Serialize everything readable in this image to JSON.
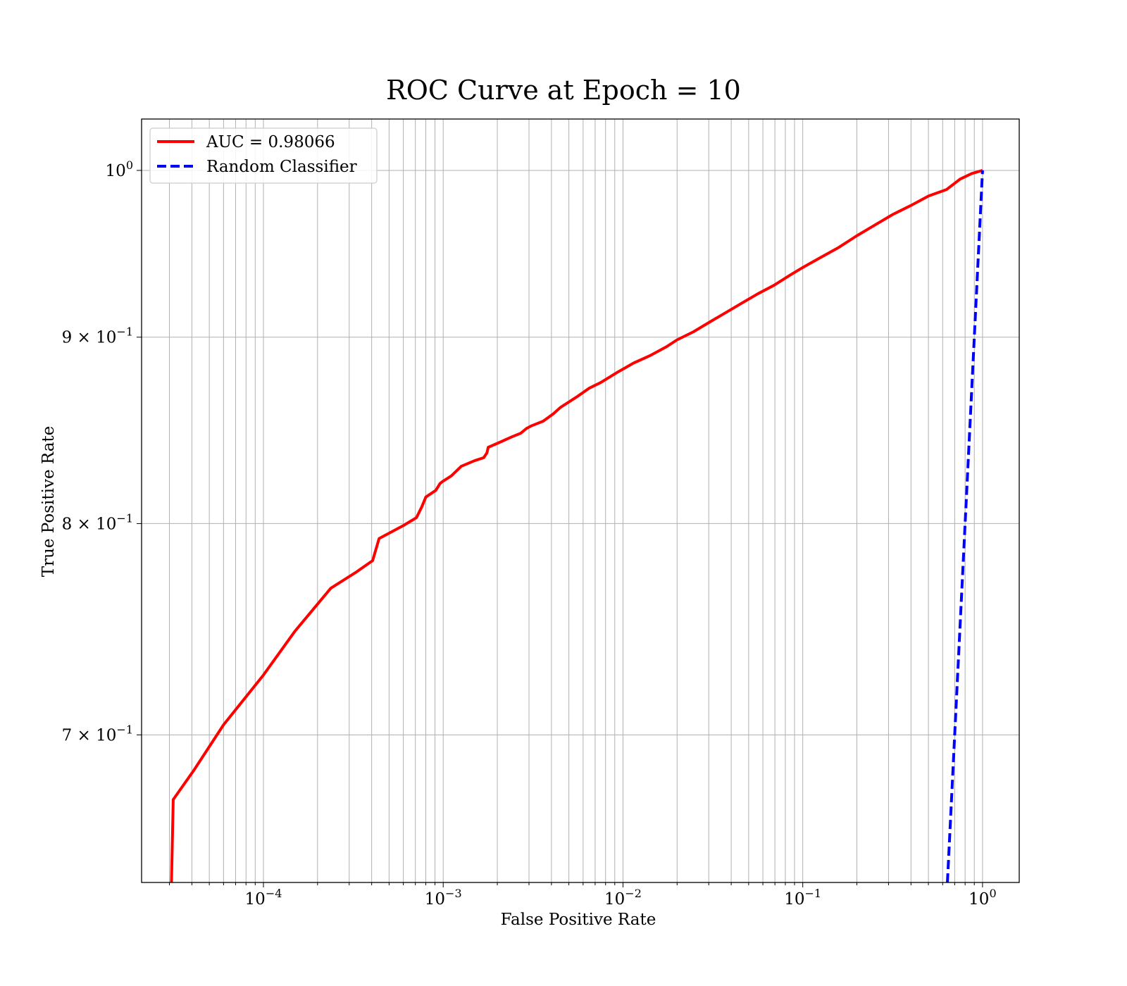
{
  "chart_data": {
    "type": "line",
    "title": "ROC Curve at Epoch = 10",
    "xlabel": "False Positive Rate",
    "ylabel": "True Positive Rate",
    "xscale": "log",
    "yscale": "log",
    "xlim": [
      2.1e-05,
      1.6
    ],
    "ylim": [
      0.6377,
      1.033
    ],
    "grid": "both (major and minor)",
    "legend_position": "upper-left",
    "xticks": [
      {
        "value": 0.0001,
        "base": "10",
        "exp": "−4"
      },
      {
        "value": 0.001,
        "base": "10",
        "exp": "−3"
      },
      {
        "value": 0.01,
        "base": "10",
        "exp": "−2"
      },
      {
        "value": 0.1,
        "base": "10",
        "exp": "−1"
      },
      {
        "value": 1,
        "base": "10",
        "exp": "0"
      }
    ],
    "yticks": [
      {
        "value": 0.7,
        "mant": "7 × 10",
        "exp": "−1"
      },
      {
        "value": 0.8,
        "mant": "8 × 10",
        "exp": "−1"
      },
      {
        "value": 0.9,
        "mant": "9 × 10",
        "exp": "−1"
      },
      {
        "value": 1.0,
        "mant": "10",
        "exp": "0"
      }
    ],
    "series": [
      {
        "name": "AUC = 0.98066",
        "color": "#ff0000",
        "style": "solid",
        "x": [
          3.08e-05,
          3.15e-05,
          4.1e-05,
          6e-05,
          0.0001,
          0.00015,
          0.000237,
          0.00033,
          0.000405,
          0.00044,
          0.0006,
          0.00071,
          0.00076,
          0.0008,
          0.00091,
          0.00096,
          0.00099,
          0.00111,
          0.00126,
          0.0015,
          0.00168,
          0.00175,
          0.00178,
          0.0021,
          0.0024,
          0.0027,
          0.0029,
          0.0031,
          0.0036,
          0.0041,
          0.0045,
          0.0055,
          0.0065,
          0.0075,
          0.0094,
          0.0115,
          0.0141,
          0.0174,
          0.02,
          0.0246,
          0.0302,
          0.0372,
          0.0457,
          0.0562,
          0.0692,
          0.0851,
          0.1,
          0.1259,
          0.1585,
          0.1995,
          0.2512,
          0.3162,
          0.3981,
          0.5012,
          0.631,
          0.75,
          0.87,
          1.0
        ],
        "y": [
          0.6377,
          0.672,
          0.6845,
          0.7045,
          0.727,
          0.7475,
          0.768,
          0.776,
          0.7815,
          0.7925,
          0.799,
          0.803,
          0.8085,
          0.8135,
          0.817,
          0.8205,
          0.8215,
          0.8245,
          0.8295,
          0.8325,
          0.834,
          0.8365,
          0.8395,
          0.8425,
          0.845,
          0.847,
          0.8495,
          0.851,
          0.8535,
          0.8575,
          0.861,
          0.8665,
          0.8715,
          0.8745,
          0.8805,
          0.8855,
          0.8895,
          0.8945,
          0.8985,
          0.903,
          0.9085,
          0.914,
          0.9195,
          0.925,
          0.93,
          0.936,
          0.9405,
          0.9465,
          0.9525,
          0.9595,
          0.966,
          0.9725,
          0.978,
          0.984,
          0.988,
          0.9945,
          0.998,
          1.0
        ]
      },
      {
        "name": "Random Classifier",
        "color": "#0000ff",
        "style": "dashed",
        "x": [
          0.6377,
          1.0
        ],
        "y": [
          0.6377,
          1.0
        ]
      }
    ]
  }
}
